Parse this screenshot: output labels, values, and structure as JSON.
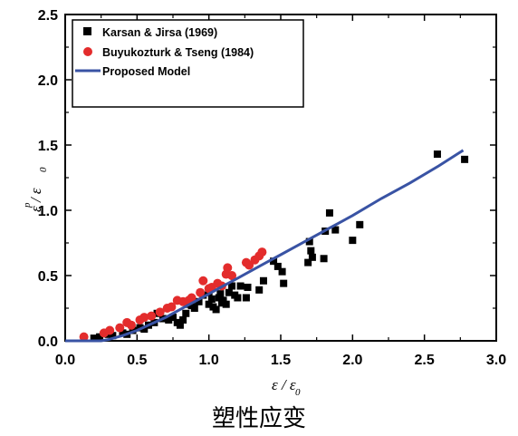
{
  "chart_data": {
    "type": "scatter",
    "caption": "塑性应变",
    "xlabel": {
      "main": "ε / ε",
      "sub": "0"
    },
    "ylabel": {
      "main": "ε / ε",
      "sup": "p",
      "sub": "0"
    },
    "xlim": [
      0,
      3.0
    ],
    "ylim": [
      0,
      2.5
    ],
    "x_ticks": [
      0.0,
      0.5,
      1.0,
      1.5,
      2.0,
      2.5,
      3.0
    ],
    "y_ticks": [
      0.0,
      0.5,
      1.0,
      1.5,
      2.0,
      2.5
    ],
    "x_tick_labels": [
      "0.0",
      "0.5",
      "1.0",
      "1.5",
      "2.0",
      "2.5",
      "3.0"
    ],
    "y_tick_labels": [
      "0.0",
      "0.5",
      "1.0",
      "1.5",
      "2.0",
      "2.5"
    ],
    "grid": false,
    "legend_position": "top-left",
    "series": [
      {
        "name": "Karsan & Jirsa (1969)",
        "marker": "square",
        "color": "#000000",
        "points": [
          [
            0.2,
            0.02
          ],
          [
            0.24,
            0.03
          ],
          [
            0.3,
            0.05
          ],
          [
            0.33,
            0.04
          ],
          [
            0.4,
            0.06
          ],
          [
            0.43,
            0.05
          ],
          [
            0.47,
            0.08
          ],
          [
            0.52,
            0.1
          ],
          [
            0.55,
            0.09
          ],
          [
            0.58,
            0.12
          ],
          [
            0.62,
            0.14
          ],
          [
            0.64,
            0.21
          ],
          [
            0.68,
            0.17
          ],
          [
            0.72,
            0.16
          ],
          [
            0.75,
            0.18
          ],
          [
            0.78,
            0.14
          ],
          [
            0.8,
            0.12
          ],
          [
            0.82,
            0.16
          ],
          [
            0.84,
            0.21
          ],
          [
            0.86,
            0.28
          ],
          [
            0.88,
            0.27
          ],
          [
            0.9,
            0.25
          ],
          [
            0.93,
            0.3
          ],
          [
            0.96,
            0.35
          ],
          [
            1.0,
            0.37
          ],
          [
            1.0,
            0.28
          ],
          [
            1.02,
            0.32
          ],
          [
            1.03,
            0.26
          ],
          [
            1.05,
            0.24
          ],
          [
            1.07,
            0.33
          ],
          [
            1.08,
            0.36
          ],
          [
            1.09,
            0.29
          ],
          [
            1.1,
            0.31
          ],
          [
            1.12,
            0.28
          ],
          [
            1.14,
            0.37
          ],
          [
            1.16,
            0.42
          ],
          [
            1.18,
            0.35
          ],
          [
            1.2,
            0.33
          ],
          [
            1.22,
            0.42
          ],
          [
            1.26,
            0.33
          ],
          [
            1.27,
            0.41
          ],
          [
            1.35,
            0.39
          ],
          [
            1.38,
            0.46
          ],
          [
            1.45,
            0.61
          ],
          [
            1.48,
            0.57
          ],
          [
            1.51,
            0.53
          ],
          [
            1.52,
            0.44
          ],
          [
            1.69,
            0.6
          ],
          [
            1.7,
            0.76
          ],
          [
            1.71,
            0.69
          ],
          [
            1.72,
            0.64
          ],
          [
            1.8,
            0.63
          ],
          [
            1.81,
            0.84
          ],
          [
            1.84,
            0.98
          ],
          [
            1.88,
            0.85
          ],
          [
            2.0,
            0.77
          ],
          [
            2.05,
            0.89
          ],
          [
            2.59,
            1.43
          ],
          [
            2.78,
            1.39
          ]
        ]
      },
      {
        "name": "Buyukozturk & Tseng (1984)",
        "marker": "circle",
        "color": "#e32c2c",
        "points": [
          [
            0.13,
            0.03
          ],
          [
            0.27,
            0.06
          ],
          [
            0.31,
            0.08
          ],
          [
            0.38,
            0.1
          ],
          [
            0.43,
            0.14
          ],
          [
            0.46,
            0.12
          ],
          [
            0.52,
            0.16
          ],
          [
            0.55,
            0.18
          ],
          [
            0.6,
            0.19
          ],
          [
            0.66,
            0.22
          ],
          [
            0.71,
            0.25
          ],
          [
            0.74,
            0.26
          ],
          [
            0.78,
            0.31
          ],
          [
            0.82,
            0.3
          ],
          [
            0.86,
            0.31
          ],
          [
            0.88,
            0.33
          ],
          [
            0.94,
            0.37
          ],
          [
            0.96,
            0.46
          ],
          [
            1.0,
            0.4
          ],
          [
            1.02,
            0.41
          ],
          [
            1.06,
            0.44
          ],
          [
            1.09,
            0.42
          ],
          [
            1.12,
            0.51
          ],
          [
            1.13,
            0.56
          ],
          [
            1.16,
            0.5
          ],
          [
            1.26,
            0.6
          ],
          [
            1.28,
            0.58
          ],
          [
            1.32,
            0.62
          ],
          [
            1.35,
            0.65
          ],
          [
            1.37,
            0.68
          ]
        ]
      },
      {
        "name": "Proposed Model",
        "marker": "line",
        "color": "#3953a4",
        "points": [
          [
            0.0,
            0.0
          ],
          [
            0.25,
            0.0
          ],
          [
            0.3,
            0.01
          ],
          [
            0.4,
            0.04
          ],
          [
            0.5,
            0.08
          ],
          [
            0.6,
            0.13
          ],
          [
            0.7,
            0.18
          ],
          [
            0.8,
            0.24
          ],
          [
            0.9,
            0.3
          ],
          [
            1.0,
            0.36
          ],
          [
            1.1,
            0.42
          ],
          [
            1.2,
            0.48
          ],
          [
            1.3,
            0.54
          ],
          [
            1.4,
            0.6
          ],
          [
            1.5,
            0.66
          ],
          [
            1.6,
            0.72
          ],
          [
            1.7,
            0.78
          ],
          [
            1.8,
            0.84
          ],
          [
            1.9,
            0.9
          ],
          [
            2.0,
            0.96
          ],
          [
            2.2,
            1.09
          ],
          [
            2.4,
            1.21
          ],
          [
            2.6,
            1.34
          ],
          [
            2.77,
            1.46
          ]
        ]
      }
    ]
  }
}
